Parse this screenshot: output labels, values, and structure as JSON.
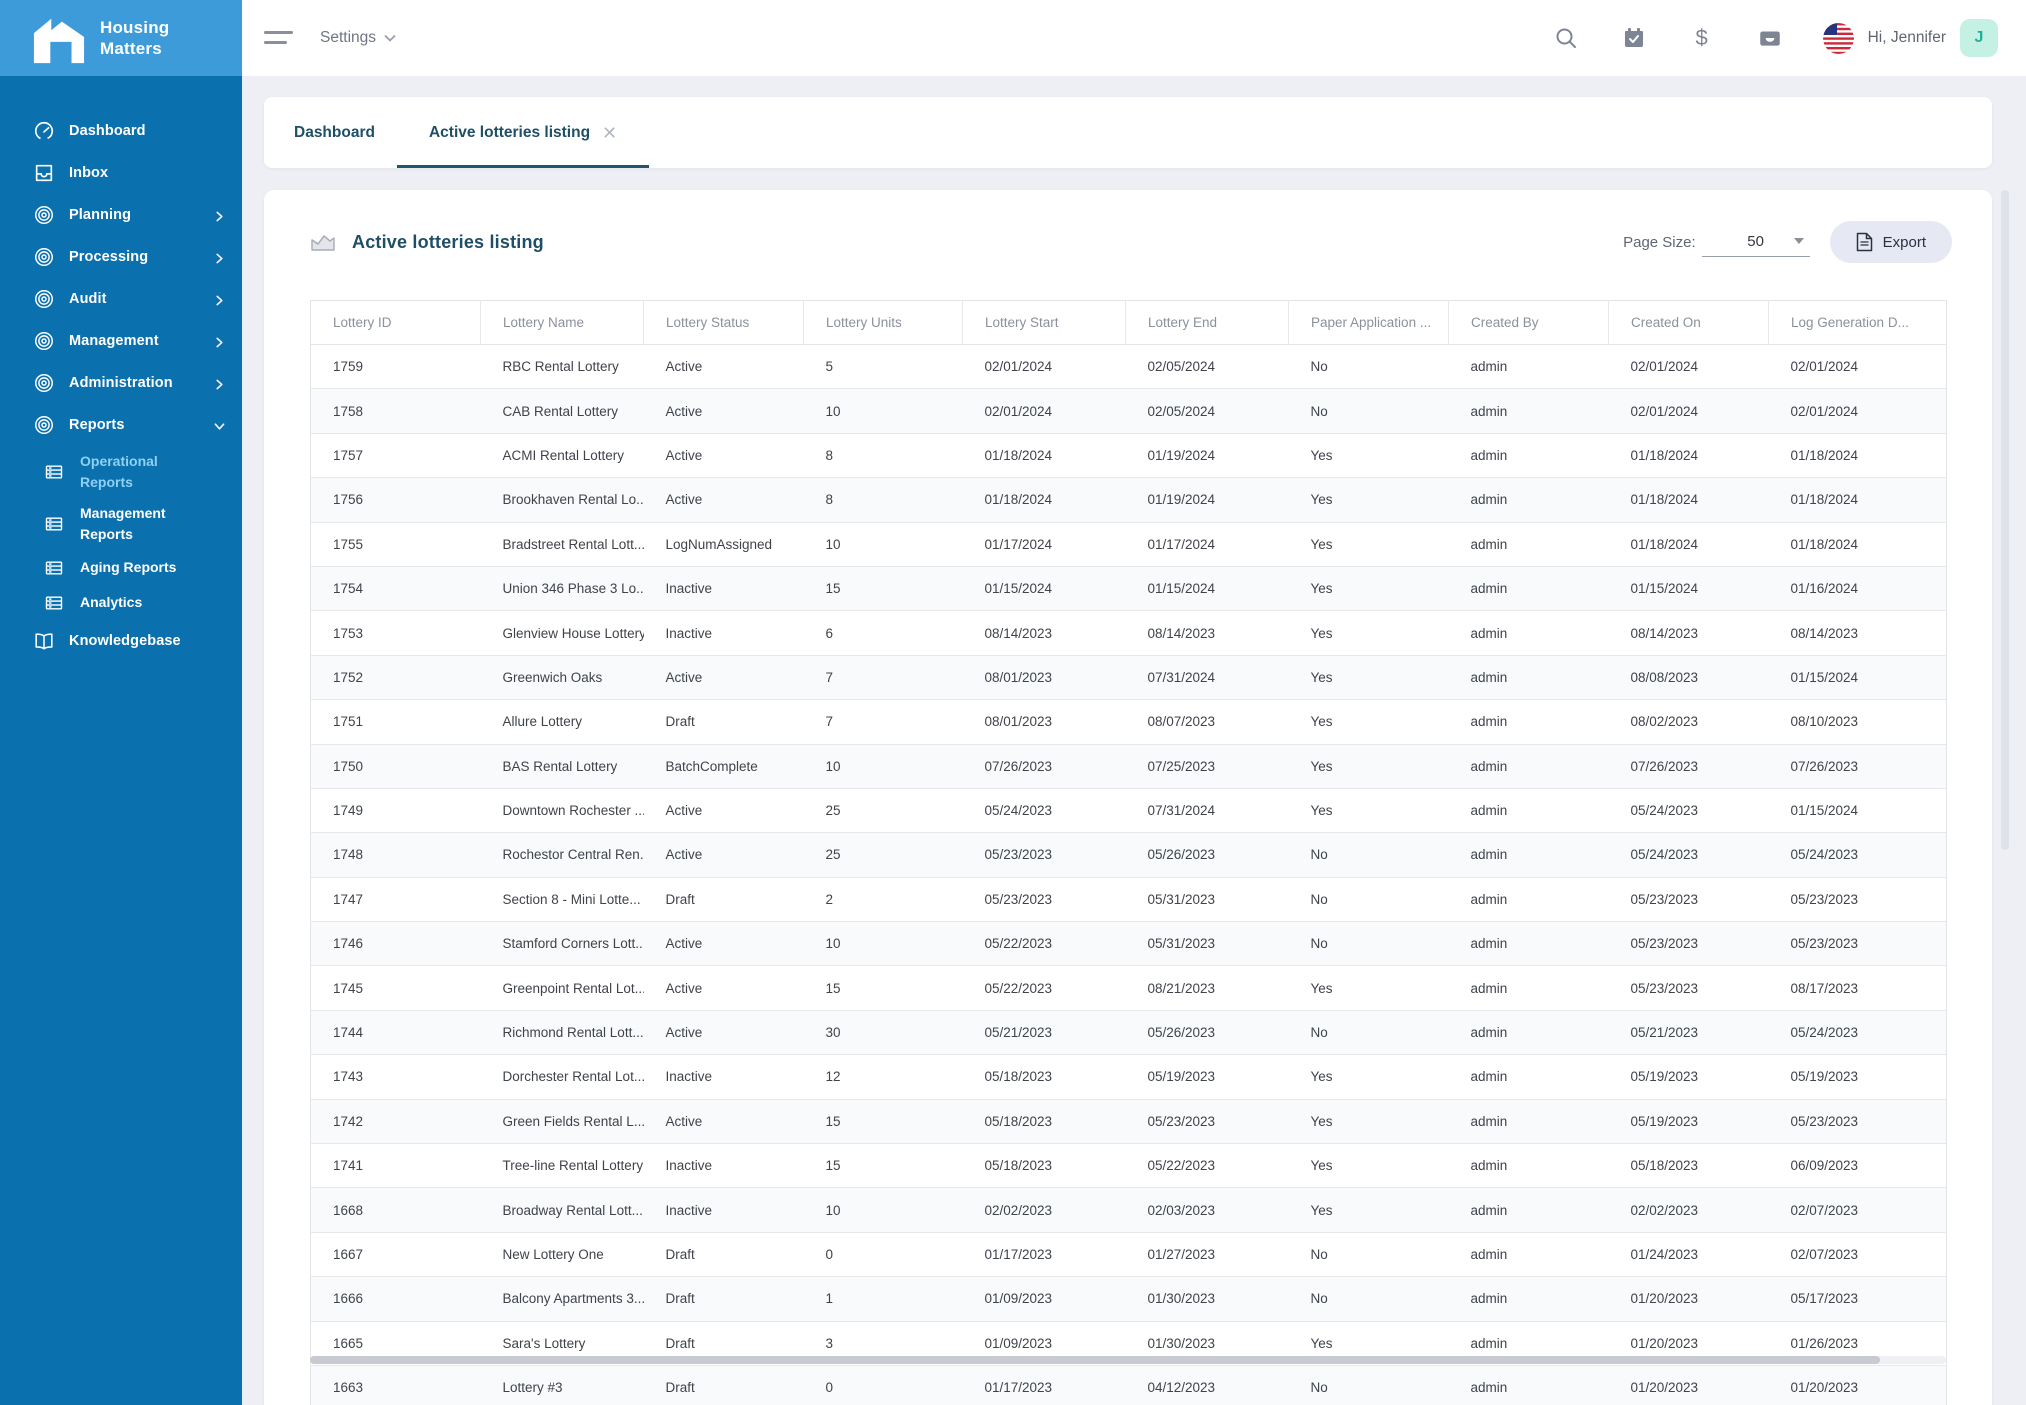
{
  "colors": {
    "sidebar_top": "#3D9BD9",
    "sidebar": "#0B70AE",
    "active_subitem_text": "#8ED1F5",
    "tab_accent": "#24556D",
    "title_text": "#1E4F66",
    "page_background": "#EDEFF4",
    "export_button_bg": "#E6E9F3",
    "avatar_bg": "#C5F1E4",
    "avatar_text": "#1FB29B"
  },
  "brand": {
    "name_line1": "Housing",
    "name_line2": "Matters"
  },
  "topbar": {
    "menu_label": "Settings",
    "icons": [
      "search-icon",
      "calendar-check-icon",
      "dollar-icon",
      "inbox-tray-icon",
      "us-flag-icon"
    ],
    "greeting": "Hi, Jennifer",
    "avatar_initial": "J"
  },
  "sidebar": {
    "items": [
      {
        "label": "Dashboard",
        "icon": "gauge"
      },
      {
        "label": "Inbox",
        "icon": "inbox"
      },
      {
        "label": "Planning",
        "icon": "target",
        "chevron": "right"
      },
      {
        "label": "Processing",
        "icon": "target",
        "chevron": "right"
      },
      {
        "label": "Audit",
        "icon": "target",
        "chevron": "right"
      },
      {
        "label": "Management",
        "icon": "target",
        "chevron": "right"
      },
      {
        "label": "Administration",
        "icon": "target",
        "chevron": "right"
      },
      {
        "label": "Reports",
        "icon": "target",
        "chevron": "down",
        "children": [
          {
            "label": "Operational Reports",
            "icon": "grid",
            "active": true
          },
          {
            "label": "Management Reports",
            "icon": "grid"
          },
          {
            "label": "Aging Reports",
            "icon": "grid"
          },
          {
            "label": "Analytics",
            "icon": "grid"
          }
        ]
      },
      {
        "label": "Knowledgebase",
        "icon": "book"
      }
    ]
  },
  "tabs": [
    {
      "label": "Dashboard",
      "active": false
    },
    {
      "label": "Active lotteries listing",
      "active": true,
      "closable": true
    }
  ],
  "page": {
    "title": "Active lotteries listing",
    "page_size_label": "Page Size:",
    "page_size_value": "50",
    "export_label": "Export"
  },
  "table": {
    "columns": [
      "Lottery ID",
      "Lottery Name",
      "Lottery Status",
      "Lottery Units",
      "Lottery Start",
      "Lottery End",
      "Paper Application ...",
      "Created By",
      "Created On",
      "Log Generation D..."
    ],
    "rows": [
      [
        "1759",
        "RBC Rental Lottery",
        "Active",
        "5",
        "02/01/2024",
        "02/05/2024",
        "No",
        "admin",
        "02/01/2024",
        "02/01/2024"
      ],
      [
        "1758",
        "CAB Rental Lottery",
        "Active",
        "10",
        "02/01/2024",
        "02/05/2024",
        "No",
        "admin",
        "02/01/2024",
        "02/01/2024"
      ],
      [
        "1757",
        "ACMI Rental Lottery",
        "Active",
        "8",
        "01/18/2024",
        "01/19/2024",
        "Yes",
        "admin",
        "01/18/2024",
        "01/18/2024"
      ],
      [
        "1756",
        "Brookhaven Rental Lo...",
        "Active",
        "8",
        "01/18/2024",
        "01/19/2024",
        "Yes",
        "admin",
        "01/18/2024",
        "01/18/2024"
      ],
      [
        "1755",
        "Bradstreet Rental Lott...",
        "LogNumAssigned",
        "10",
        "01/17/2024",
        "01/17/2024",
        "Yes",
        "admin",
        "01/18/2024",
        "01/18/2024"
      ],
      [
        "1754",
        "Union 346 Phase 3 Lo...",
        "Inactive",
        "15",
        "01/15/2024",
        "01/15/2024",
        "Yes",
        "admin",
        "01/15/2024",
        "01/16/2024"
      ],
      [
        "1753",
        "Glenview House Lottery",
        "Inactive",
        "6",
        "08/14/2023",
        "08/14/2023",
        "Yes",
        "admin",
        "08/14/2023",
        "08/14/2023"
      ],
      [
        "1752",
        "Greenwich Oaks",
        "Active",
        "7",
        "08/01/2023",
        "07/31/2024",
        "Yes",
        "admin",
        "08/08/2023",
        "01/15/2024"
      ],
      [
        "1751",
        "Allure Lottery",
        "Draft",
        "7",
        "08/01/2023",
        "08/07/2023",
        "Yes",
        "admin",
        "08/02/2023",
        "08/10/2023"
      ],
      [
        "1750",
        "BAS Rental Lottery",
        "BatchComplete",
        "10",
        "07/26/2023",
        "07/25/2023",
        "Yes",
        "admin",
        "07/26/2023",
        "07/26/2023"
      ],
      [
        "1749",
        "Downtown Rochester ...",
        "Active",
        "25",
        "05/24/2023",
        "07/31/2024",
        "Yes",
        "admin",
        "05/24/2023",
        "01/15/2024"
      ],
      [
        "1748",
        "Rochestor Central Ren...",
        "Active",
        "25",
        "05/23/2023",
        "05/26/2023",
        "No",
        "admin",
        "05/24/2023",
        "05/24/2023"
      ],
      [
        "1747",
        "Section 8 - Mini Lotte...",
        "Draft",
        "2",
        "05/23/2023",
        "05/31/2023",
        "No",
        "admin",
        "05/23/2023",
        "05/23/2023"
      ],
      [
        "1746",
        "Stamford Corners Lott...",
        "Active",
        "10",
        "05/22/2023",
        "05/31/2023",
        "No",
        "admin",
        "05/23/2023",
        "05/23/2023"
      ],
      [
        "1745",
        "Greenpoint Rental Lot...",
        "Active",
        "15",
        "05/22/2023",
        "08/21/2023",
        "Yes",
        "admin",
        "05/23/2023",
        "08/17/2023"
      ],
      [
        "1744",
        "Richmond Rental Lott...",
        "Active",
        "30",
        "05/21/2023",
        "05/26/2023",
        "No",
        "admin",
        "05/21/2023",
        "05/24/2023"
      ],
      [
        "1743",
        "Dorchester Rental Lot...",
        "Inactive",
        "12",
        "05/18/2023",
        "05/19/2023",
        "Yes",
        "admin",
        "05/19/2023",
        "05/19/2023"
      ],
      [
        "1742",
        "Green Fields Rental L...",
        "Active",
        "15",
        "05/18/2023",
        "05/23/2023",
        "Yes",
        "admin",
        "05/19/2023",
        "05/23/2023"
      ],
      [
        "1741",
        "Tree-line Rental Lottery",
        "Inactive",
        "15",
        "05/18/2023",
        "05/22/2023",
        "Yes",
        "admin",
        "05/18/2023",
        "06/09/2023"
      ],
      [
        "1668",
        "Broadway Rental Lott...",
        "Inactive",
        "10",
        "02/02/2023",
        "02/03/2023",
        "Yes",
        "admin",
        "02/02/2023",
        "02/07/2023"
      ],
      [
        "1667",
        "New Lottery One",
        "Draft",
        "0",
        "01/17/2023",
        "01/27/2023",
        "No",
        "admin",
        "01/24/2023",
        "02/07/2023"
      ],
      [
        "1666",
        "Balcony Apartments 3...",
        "Draft",
        "1",
        "01/09/2023",
        "01/30/2023",
        "No",
        "admin",
        "01/20/2023",
        "05/17/2023"
      ],
      [
        "1665",
        "Sara's Lottery",
        "Draft",
        "3",
        "01/09/2023",
        "01/30/2023",
        "Yes",
        "admin",
        "01/20/2023",
        "01/26/2023"
      ],
      [
        "1663",
        "Lottery #3",
        "Draft",
        "0",
        "01/17/2023",
        "04/12/2023",
        "No",
        "admin",
        "01/20/2023",
        "01/20/2023"
      ]
    ]
  }
}
